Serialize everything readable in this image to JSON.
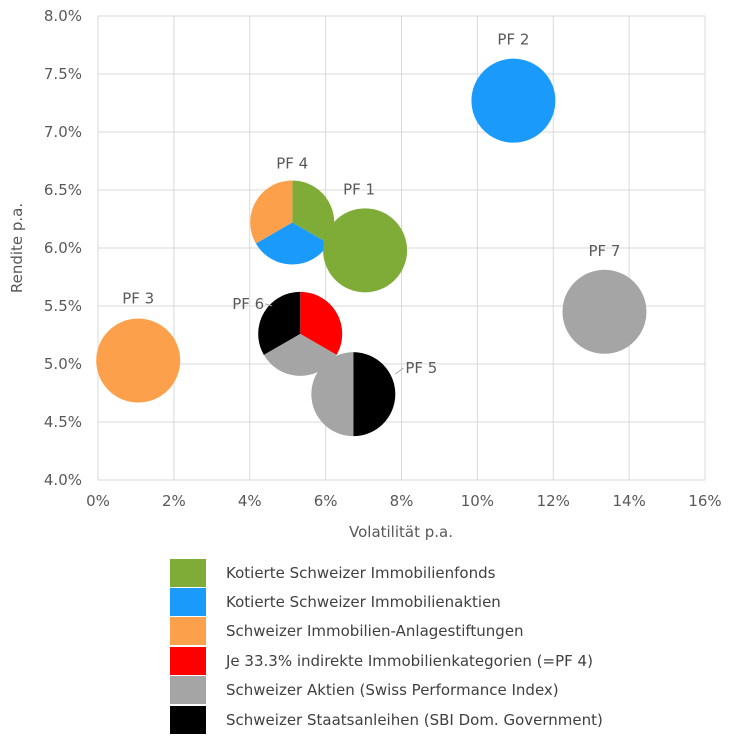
{
  "chart_data": {
    "type": "bubble-pie",
    "xlabel": "Volatilität p.a.",
    "ylabel": "Rendite p.a.",
    "xlim": [
      0,
      16
    ],
    "ylim": [
      4.0,
      8.0
    ],
    "x_ticks": [
      "0%",
      "2%",
      "4%",
      "6%",
      "8%",
      "10%",
      "12%",
      "14%",
      "16%"
    ],
    "y_ticks": [
      "4.0%",
      "4.5%",
      "5.0%",
      "5.5%",
      "6.0%",
      "6.5%",
      "7.0%",
      "7.5%",
      "8.0%"
    ],
    "grid": true,
    "legend_position": "bottom",
    "categories": [
      {
        "name": "Kotierte Schweizer Immobilienfonds",
        "color": "#7FAB37"
      },
      {
        "name": "Kotierte Schweizer Immobilienaktien",
        "color": "#1A9BFC"
      },
      {
        "name": "Schweizer Immobilien-Anlagestiftungen",
        "color": "#FDA04B"
      },
      {
        "name": "Je 33.3% indirekte Immobilienkategorien (=PF 4)",
        "color": "#FF0000"
      },
      {
        "name": "Schweizer Aktien (Swiss Performance Index)",
        "color": "#A5A5A5"
      },
      {
        "name": "Schweizer Staatsanleihen (SBI Dom. Government)",
        "color": "#000000"
      }
    ],
    "portfolios": [
      {
        "label": "PF 2",
        "x": 10.95,
        "y": 7.27,
        "weights": [
          0,
          1,
          0,
          0,
          0,
          0
        ]
      },
      {
        "label": "PF 4",
        "x": 5.12,
        "y": 6.22,
        "weights": [
          0.333,
          0.333,
          0.333,
          0,
          0,
          0
        ]
      },
      {
        "label": "PF 1",
        "x": 7.04,
        "y": 5.98,
        "weights": [
          1,
          0,
          0,
          0,
          0,
          0
        ]
      },
      {
        "label": "PF 3",
        "x": 1.06,
        "y": 5.03,
        "weights": [
          0,
          0,
          1,
          0,
          0,
          0
        ]
      },
      {
        "label": "PF 7",
        "x": 13.35,
        "y": 5.45,
        "weights": [
          0,
          0,
          0,
          0,
          1,
          0
        ]
      },
      {
        "label": "PF 6",
        "x": 5.33,
        "y": 5.26,
        "weights": [
          0,
          0,
          0,
          0.333,
          0.333,
          0.333
        ]
      },
      {
        "label": "PF 5",
        "x": 6.73,
        "y": 4.74,
        "weights": [
          0,
          0,
          0,
          0,
          0.5,
          0.5
        ]
      }
    ]
  }
}
